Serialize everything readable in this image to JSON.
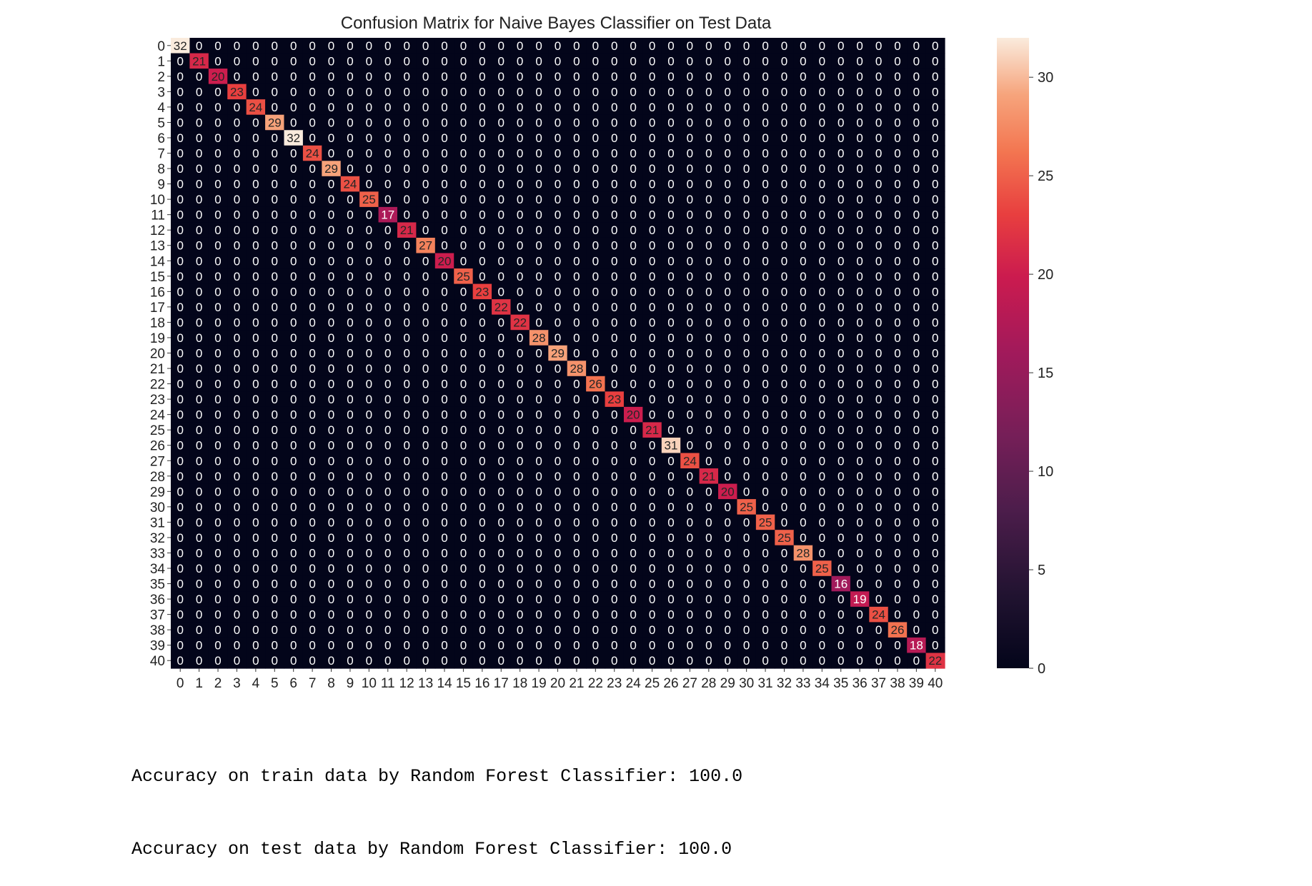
{
  "chart_data": {
    "type": "heatmap",
    "title": "Confusion Matrix for Naive Bayes Classifier on Test Data",
    "xlabel": "",
    "ylabel": "",
    "labels": [
      0,
      1,
      2,
      3,
      4,
      5,
      6,
      7,
      8,
      9,
      10,
      11,
      12,
      13,
      14,
      15,
      16,
      17,
      18,
      19,
      20,
      21,
      22,
      23,
      24,
      25,
      26,
      27,
      28,
      29,
      30,
      31,
      32,
      33,
      34,
      35,
      36,
      37,
      38,
      39,
      40
    ],
    "diagonal": [
      32,
      21,
      20,
      23,
      24,
      29,
      32,
      24,
      29,
      24,
      25,
      17,
      21,
      27,
      20,
      25,
      23,
      22,
      22,
      28,
      29,
      28,
      26,
      23,
      20,
      21,
      31,
      24,
      21,
      20,
      25,
      25,
      25,
      28,
      25,
      16,
      19,
      24,
      26,
      18,
      22
    ],
    "off_diagonal_value": 0,
    "annotations": true,
    "colormap": "rocket",
    "colorbar": {
      "min": 0,
      "max": 32,
      "ticks": [
        0,
        5,
        10,
        15,
        20,
        25,
        30
      ]
    }
  },
  "output": {
    "lines": [
      "Accuracy on train data by Random Forest Classifier: 100.0",
      "Accuracy on test data by Random Forest Classifier: 100.0"
    ]
  }
}
